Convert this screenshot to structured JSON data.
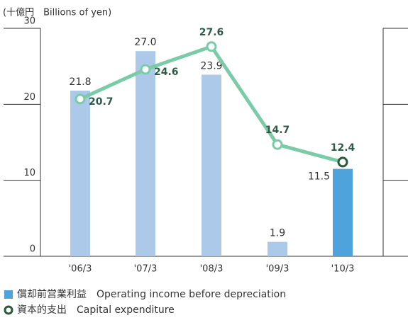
{
  "chart_data": {
    "type": "bar-line",
    "unit_label": "(十億円　Billions of yen)",
    "categories": [
      "'06/3",
      "'07/3",
      "'08/3",
      "'09/3",
      "'10/3"
    ],
    "series": [
      {
        "name": "償却前営業利益　Operating income before depreciation",
        "type": "bar",
        "color": "#4fa3dc",
        "colors": [
          "#adc9ea",
          "#adc9ea",
          "#adc9ea",
          "#adc9ea",
          "#4fa3dc"
        ],
        "values": [
          21.8,
          27.0,
          23.9,
          1.9,
          11.5
        ],
        "value_labels": [
          "21.8",
          "27.0",
          "23.9",
          "1.9",
          "11.5"
        ]
      },
      {
        "name": "資本的支出　Capital expenditure",
        "type": "line",
        "color": "#7ccba8",
        "marker_color": "#2a5a3a",
        "marker_colors": [
          "#7ccba8",
          "#7ccba8",
          "#7ccba8",
          "#7ccba8",
          "#2a5a3a"
        ],
        "values": [
          20.7,
          24.6,
          27.6,
          14.7,
          12.4
        ],
        "value_labels": [
          "20.7",
          "24.6",
          "27.6",
          "14.7",
          "12.4"
        ]
      }
    ],
    "ylim": [
      0,
      30
    ],
    "yticks": [
      0,
      10,
      20,
      30
    ]
  }
}
